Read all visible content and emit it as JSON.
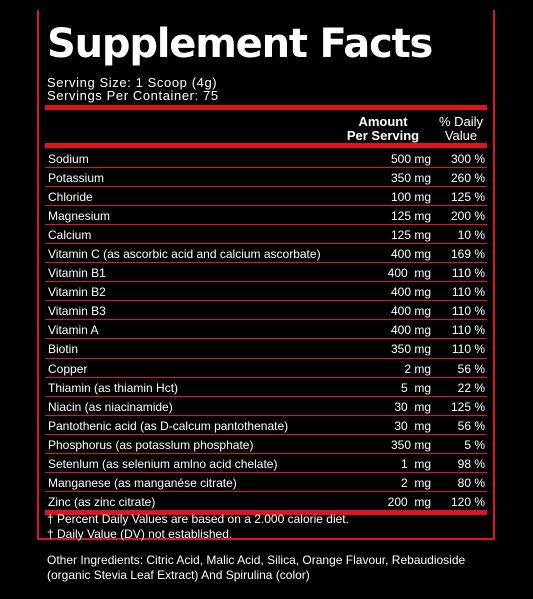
{
  "title": "Supplement Facts",
  "serving_size": "Serving Size: 1 Scoop (4g)",
  "servings_per_container": "Servings Per Container: 75",
  "header": {
    "amount_line1": "Amount",
    "amount_line2": "Per Serving",
    "dv_line1": "% Daily",
    "dv_line2": "Value"
  },
  "rows": [
    {
      "name": "Sodium",
      "amount": "500 mg",
      "dv": "300 %"
    },
    {
      "name": "Potassium",
      "amount": "350 mg",
      "dv": "260 %"
    },
    {
      "name": "Chloride",
      "amount": "100 mg",
      "dv": "125 %"
    },
    {
      "name": "Magnesium",
      "amount": "125 mg",
      "dv": "200 %"
    },
    {
      "name": "Calcium",
      "amount": "125 mg",
      "dv": "10 %"
    },
    {
      "name": "Vitamin C (as ascorbic acid and calcium ascorbate)",
      "amount": "400 mg",
      "dv": "169 %"
    },
    {
      "name": "Vitamin B1",
      "amount": "400  mg",
      "dv": "110 %"
    },
    {
      "name": "Vitamin B2",
      "amount": "400 mg",
      "dv": "110 %"
    },
    {
      "name": "Vitamin B3",
      "amount": "400 mg",
      "dv": "110 %"
    },
    {
      "name": "Vitamin A",
      "amount": "400 mg",
      "dv": "110 %"
    },
    {
      "name": "Biotin",
      "amount": "350 mg",
      "dv": "110 %"
    },
    {
      "name": "Copper",
      "amount": "2 mg",
      "dv": "56 %"
    },
    {
      "name": "Thiamin (as thiamin Hct)",
      "amount": "5  mg",
      "dv": "22 %"
    },
    {
      "name": "Niacin (as niacinamide)",
      "amount": "30  mg",
      "dv": "125 %"
    },
    {
      "name": "Pantothenic acid (as D-calcum pantothenate)",
      "amount": "30  mg",
      "dv": "56 %"
    },
    {
      "name": "Phosphorus (as potasslum phosphate)",
      "amount": "350 mg",
      "dv": "5 %"
    },
    {
      "name": "Setenlum (as selenium amlno acid chelate)",
      "amount": "1  mg",
      "dv": "98 %"
    },
    {
      "name": "Manganese (as manganése citrate)",
      "amount": "2  mg",
      "dv": "80 %"
    },
    {
      "name": "Zinc (as zinc citrate)",
      "amount": "200  mg",
      "dv": "120 %"
    }
  ],
  "footnotes": [
    "† Percent Daily Values are based on a 2.000 calorie diet.",
    "† Daily Value (DV) not established."
  ],
  "other_ingredients": "Other Ingredients: Citric Acid, Malic Acid, Silica, Orange Flavour, Rebaudioside (organic Stevia Leaf Extract) And Spirulina (color)",
  "colors": {
    "accent": "#e0141c",
    "background": "#000000",
    "text": "#ffffff"
  }
}
